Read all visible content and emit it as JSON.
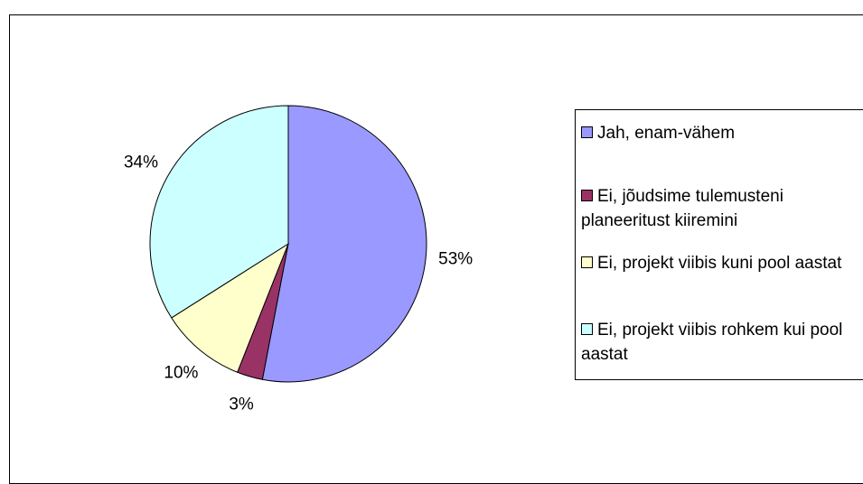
{
  "chart_data": {
    "type": "pie",
    "categories": [
      "Jah, enam-vähem",
      "Ei, jõudsime tulemusteni planeeritust kiiremini",
      "Ei, projekt viibis kuni pool aastat",
      "Ei, projekt viibis rohkem kui pool aastat"
    ],
    "values": [
      53,
      3,
      10,
      34
    ],
    "value_labels": [
      "53%",
      "3%",
      "10%",
      "34%"
    ],
    "colors": [
      "#9999ff",
      "#993366",
      "#ffffcc",
      "#ccffff"
    ]
  }
}
